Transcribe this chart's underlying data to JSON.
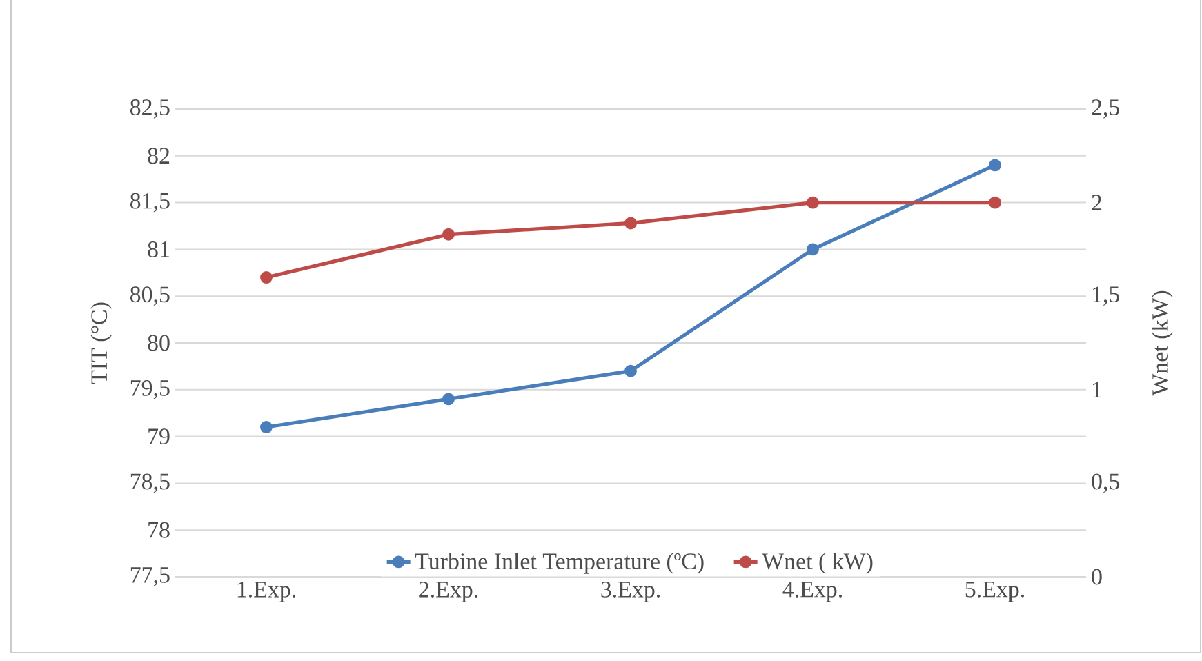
{
  "chart_data": {
    "type": "line",
    "categories": [
      "1.Exp.",
      "2.Exp.",
      "3.Exp.",
      "4.Exp.",
      "5.Exp."
    ],
    "series": [
      {
        "name": "Turbine Inlet Temperature (ºC)",
        "color": "#4a7ebb",
        "values": [
          79.1,
          79.4,
          79.7,
          81.0,
          81.9
        ]
      },
      {
        "name": "Wnet ( kW)",
        "color": "#be4b48",
        "axis": "y2",
        "values": [
          1.6,
          1.83,
          1.89,
          2.0,
          2.0
        ]
      }
    ],
    "ylabel": "TIT (°C)",
    "y2label": "Wnet (kW)",
    "ylim": [
      77.5,
      82.5
    ],
    "yticks": [
      {
        "value": 77.5,
        "label": "77,5"
      },
      78,
      {
        "value": 78.5,
        "label": "78,5"
      },
      79,
      {
        "value": 79.5,
        "label": "79,5"
      },
      80,
      {
        "value": 80.5,
        "label": "80,5"
      },
      81,
      {
        "value": 81.5,
        "label": "81,5"
      },
      82,
      {
        "value": 82.5,
        "label": "82,5"
      }
    ],
    "y2lim": [
      0,
      2.5
    ],
    "y2ticks": [
      0,
      {
        "value": 0.5,
        "label": "0,5"
      },
      1,
      {
        "value": 1.5,
        "label": "1,5"
      },
      2,
      {
        "value": 2.5,
        "label": "2,5"
      }
    ],
    "grid": "y",
    "legend": "bottom",
    "marker": "circle",
    "line_style": "solid"
  }
}
